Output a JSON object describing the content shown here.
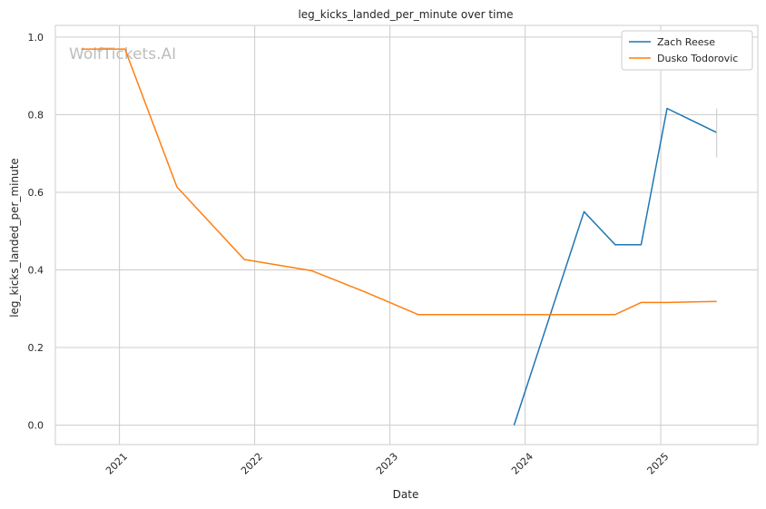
{
  "chart_data": {
    "type": "line",
    "title": "leg_kicks_landed_per_minute over time",
    "xlabel": "Date",
    "ylabel": "leg_kicks_landed_per_minute",
    "watermark": "WolfTickets.AI",
    "x_ticks": [
      "2021",
      "2022",
      "2023",
      "2024",
      "2025"
    ],
    "y_ticks": [
      "0.0",
      "0.2",
      "0.4",
      "0.6",
      "0.8",
      "1.0"
    ],
    "xlim": [
      "2020-07-12",
      "2025-09-20"
    ],
    "ylim": [
      -0.05,
      1.03
    ],
    "grid": true,
    "legend_position": "top-right",
    "series": [
      {
        "name": "Zach Reese",
        "color": "#1f77b4",
        "points": [
          [
            "2023-12-02",
            0.0
          ],
          [
            "2024-06-08",
            0.55
          ],
          [
            "2024-08-31",
            0.465
          ],
          [
            "2024-11-09",
            0.465
          ],
          [
            "2025-01-18",
            0.816
          ],
          [
            "2025-06-01",
            0.754
          ]
        ],
        "error_bar": {
          "x": "2025-06-01",
          "low": 0.69,
          "high": 0.816
        }
      },
      {
        "name": "Dusko Todorovic",
        "color": "#ff7f0e",
        "points": [
          [
            "2020-09-20",
            0.969
          ],
          [
            "2021-01-16",
            0.969
          ],
          [
            "2021-06-05",
            0.614
          ],
          [
            "2021-12-04",
            0.427
          ],
          [
            "2022-06-04",
            0.398
          ],
          [
            "2022-10-29",
            0.342
          ],
          [
            "2023-03-18",
            0.285
          ],
          [
            "2024-08-31",
            0.285
          ],
          [
            "2024-11-09",
            0.316
          ],
          [
            "2025-01-18",
            0.316
          ],
          [
            "2025-06-01",
            0.319
          ]
        ]
      }
    ]
  }
}
